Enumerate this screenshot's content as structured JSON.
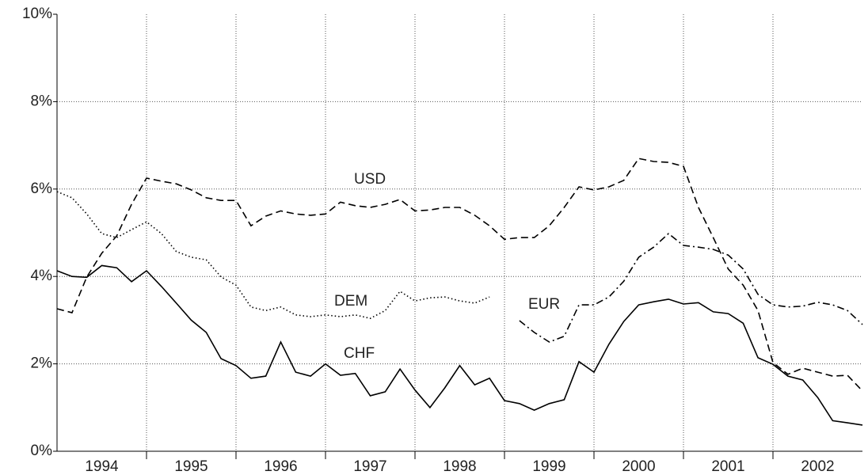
{
  "chart_data": {
    "type": "line",
    "x": [
      1994.0,
      1994.167,
      1994.333,
      1994.5,
      1994.667,
      1994.833,
      1995.0,
      1995.167,
      1995.333,
      1995.5,
      1995.667,
      1995.833,
      1996.0,
      1996.167,
      1996.333,
      1996.5,
      1996.667,
      1996.833,
      1997.0,
      1997.167,
      1997.333,
      1997.5,
      1997.667,
      1997.833,
      1998.0,
      1998.167,
      1998.333,
      1998.5,
      1998.667,
      1998.833,
      1999.0,
      1999.167,
      1999.333,
      1999.5,
      1999.667,
      1999.833,
      2000.0,
      2000.167,
      2000.333,
      2000.5,
      2000.667,
      2000.833,
      2001.0,
      2001.167,
      2001.333,
      2001.5,
      2001.667,
      2001.833,
      2002.0,
      2002.167,
      2002.333,
      2002.5,
      2002.667,
      2002.833,
      2003.0
    ],
    "series": [
      {
        "name": "USD",
        "color": "#000000",
        "dash": "dashed",
        "values": [
          3.26,
          3.17,
          3.99,
          4.53,
          4.93,
          5.65,
          6.25,
          6.18,
          6.12,
          5.98,
          5.8,
          5.74,
          5.74,
          5.16,
          5.38,
          5.5,
          5.43,
          5.4,
          5.43,
          5.7,
          5.62,
          5.58,
          5.65,
          5.76,
          5.5,
          5.52,
          5.58,
          5.58,
          5.4,
          5.16,
          4.85,
          4.89,
          4.89,
          5.16,
          5.58,
          6.05,
          5.98,
          6.05,
          6.2,
          6.7,
          6.63,
          6.61,
          6.52,
          5.58,
          4.89,
          4.17,
          3.8,
          3.22,
          2.03,
          1.76,
          1.9,
          1.81,
          1.72,
          1.74,
          1.38
        ]
      },
      {
        "name": "DEM",
        "color": "#000000",
        "dash": "dotted",
        "values": [
          5.94,
          5.8,
          5.43,
          4.98,
          4.89,
          5.07,
          5.25,
          4.98,
          4.57,
          4.44,
          4.38,
          3.99,
          3.8,
          3.3,
          3.22,
          3.3,
          3.12,
          3.08,
          3.12,
          3.08,
          3.12,
          3.04,
          3.22,
          3.66,
          3.44,
          3.51,
          3.53,
          3.44,
          3.39,
          3.53,
          null,
          null,
          null,
          null,
          null,
          null,
          null,
          null,
          null,
          null,
          null,
          null,
          null,
          null,
          null,
          null,
          null,
          null,
          null,
          null,
          null,
          null,
          null,
          null,
          null
        ]
      },
      {
        "name": "EUR",
        "color": "#000000",
        "dash": "dashdot",
        "values": [
          null,
          null,
          null,
          null,
          null,
          null,
          null,
          null,
          null,
          null,
          null,
          null,
          null,
          null,
          null,
          null,
          null,
          null,
          null,
          null,
          null,
          null,
          null,
          null,
          null,
          null,
          null,
          null,
          null,
          null,
          null,
          2.99,
          2.72,
          2.5,
          2.63,
          3.35,
          3.35,
          3.53,
          3.89,
          4.44,
          4.67,
          4.98,
          4.71,
          4.67,
          4.62,
          4.49,
          4.17,
          3.59,
          3.35,
          3.3,
          3.32,
          3.41,
          3.35,
          3.22,
          2.9
        ]
      },
      {
        "name": "CHF",
        "color": "#000000",
        "dash": "solid",
        "values": [
          4.13,
          4.0,
          3.98,
          4.25,
          4.2,
          3.88,
          4.13,
          3.77,
          3.39,
          3.0,
          2.72,
          2.12,
          1.96,
          1.67,
          1.72,
          2.5,
          1.81,
          1.72,
          2.0,
          1.74,
          1.78,
          1.27,
          1.36,
          1.88,
          1.4,
          1.0,
          1.45,
          1.96,
          1.52,
          1.67,
          1.16,
          1.09,
          0.94,
          1.09,
          1.18,
          2.05,
          1.81,
          2.45,
          2.97,
          3.35,
          3.42,
          3.48,
          3.37,
          3.4,
          3.19,
          3.15,
          2.93,
          2.14,
          1.99,
          1.72,
          1.63,
          1.23,
          0.7,
          0.65,
          0.6
        ]
      }
    ],
    "xlim": [
      1994,
      2003
    ],
    "xticks": [
      {
        "value": 1994.5,
        "label": "1994"
      },
      {
        "value": 1995.5,
        "label": "1995"
      },
      {
        "value": 1996.5,
        "label": "1996"
      },
      {
        "value": 1997.5,
        "label": "1997"
      },
      {
        "value": 1998.5,
        "label": "1998"
      },
      {
        "value": 1999.5,
        "label": "1999"
      },
      {
        "value": 2000.5,
        "label": "2000"
      },
      {
        "value": 2001.5,
        "label": "2001"
      },
      {
        "value": 2002.5,
        "label": "2002"
      }
    ],
    "xgrid": [
      1995,
      1996,
      1997,
      1998,
      1999,
      2000,
      2001,
      2002
    ],
    "ylim": [
      0,
      10
    ],
    "yticks": [
      {
        "value": 0,
        "label": "0%"
      },
      {
        "value": 2,
        "label": "2%"
      },
      {
        "value": 4,
        "label": "4%"
      },
      {
        "value": 6,
        "label": "6%"
      },
      {
        "value": 8,
        "label": "8%"
      },
      {
        "value": 10,
        "label": "10%"
      }
    ],
    "grid": true
  }
}
